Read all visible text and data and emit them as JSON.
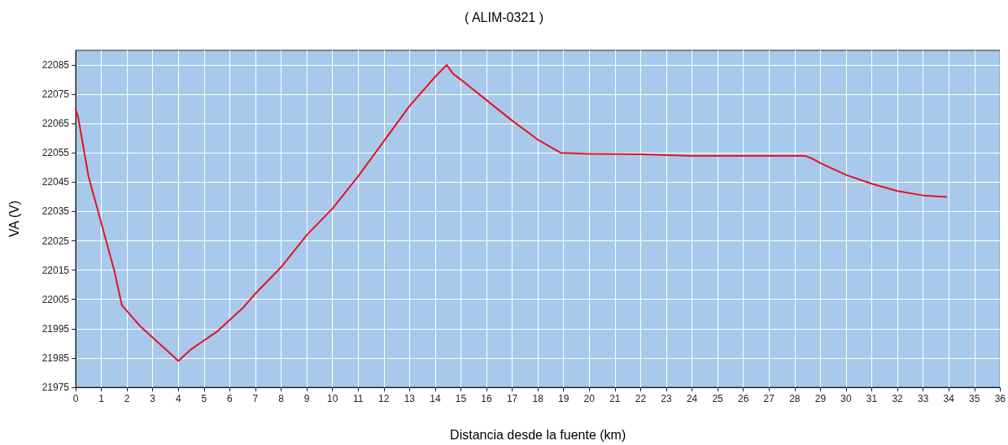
{
  "chart_data": {
    "type": "line",
    "title": "( ALIM-0321 )",
    "xlabel": "Distancia desde la fuente (km)",
    "ylabel": "VA (V)",
    "series": [
      {
        "color": "#e8101a",
        "x": [
          0,
          0.1,
          0.5,
          1,
          1.5,
          1.8,
          2,
          2.5,
          3,
          3.5,
          4,
          4.5,
          5,
          5.5,
          6,
          6.5,
          7,
          8,
          9,
          10,
          11,
          12,
          13,
          14,
          14.45,
          14.7,
          15,
          16,
          17,
          18,
          18.9,
          20,
          22,
          24,
          28.4,
          28.7,
          29,
          29.5,
          30,
          31,
          32,
          33,
          33.9
        ],
        "values": [
          22070,
          22067,
          22047,
          22031,
          22015,
          22003,
          22001,
          21996,
          21992,
          21988,
          21984,
          21988,
          21991,
          21994,
          21998,
          22002,
          22007,
          22016,
          22027,
          22036,
          22047,
          22059,
          22071,
          22081,
          22085,
          22082,
          22080,
          22073,
          22066,
          22059.5,
          22055,
          22054.7,
          22054.5,
          22054,
          22054,
          22053,
          22051.5,
          22049.5,
          22047.5,
          22044.5,
          22042,
          22040.5,
          22040
        ]
      }
    ],
    "xlim": [
      0,
      36
    ],
    "xticks": [
      0,
      1,
      2,
      3,
      4,
      5,
      6,
      7,
      8,
      9,
      10,
      11,
      12,
      13,
      14,
      15,
      16,
      17,
      18,
      19,
      20,
      21,
      22,
      23,
      24,
      25,
      26,
      27,
      28,
      29,
      30,
      31,
      32,
      33,
      34,
      35,
      36
    ],
    "ylim": [
      21975,
      22090
    ],
    "yticks": [
      21975,
      21985,
      21995,
      22005,
      22015,
      22025,
      22035,
      22045,
      22055,
      22065,
      22075,
      22085
    ],
    "grid": true,
    "marker": "none",
    "line_style": "solid"
  }
}
